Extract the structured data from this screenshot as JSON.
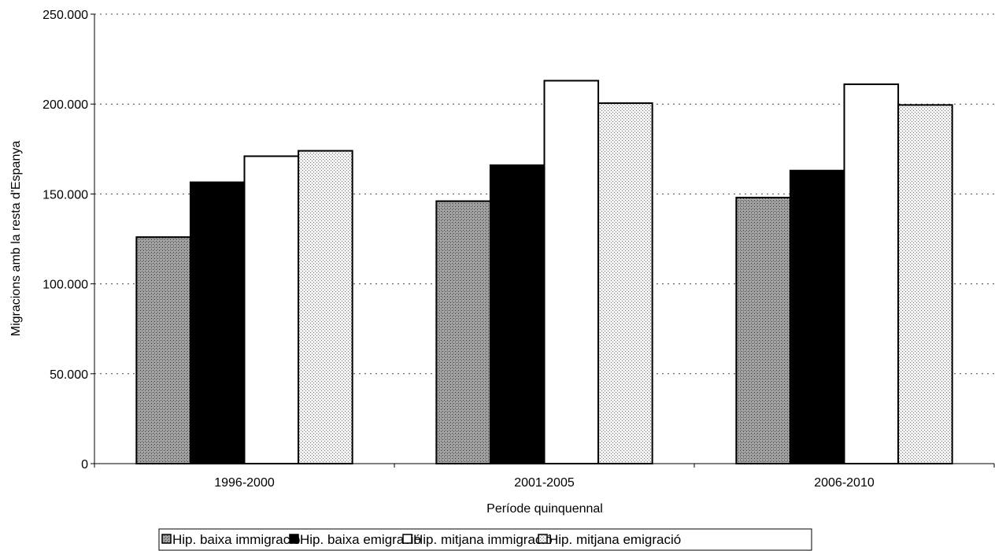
{
  "chart_data": {
    "type": "bar",
    "title": "",
    "xlabel": "Període quinquennal",
    "ylabel": "Migracions amb la resta d'Espanya",
    "categories": [
      "1996-2000",
      "2001-2005",
      "2006-2010"
    ],
    "ylim": [
      0,
      250000
    ],
    "yticks": [
      0,
      50000,
      100000,
      150000,
      200000,
      250000
    ],
    "ytick_labels": [
      "0",
      "50.000",
      "100.000",
      "150.000",
      "200.000",
      "250.000"
    ],
    "grid": true,
    "legend_position": "bottom",
    "series": [
      {
        "name": "Hip. baixa immigració",
        "values": [
          126000,
          146000,
          148000
        ],
        "fill": "dark-dots"
      },
      {
        "name": "Hip. baixa emigració",
        "values": [
          156500,
          166000,
          163000
        ],
        "fill": "black"
      },
      {
        "name": "Hip. mitjana immigració",
        "values": [
          171000,
          213000,
          211000
        ],
        "fill": "white"
      },
      {
        "name": "Hip. mitjana emigració",
        "values": [
          174000,
          200500,
          199500
        ],
        "fill": "light-dots"
      }
    ]
  }
}
